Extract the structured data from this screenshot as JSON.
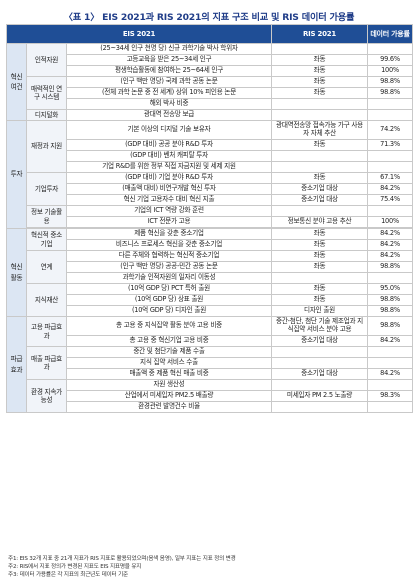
{
  "title": "〈표 1〉 EIS 2021과 RIS 2021의 지표 구조 비교 및 RIS 데이터 가용률",
  "header": {
    "eis": "EIS 2021",
    "ris": "RIS 2021",
    "availability": "데이터 가용률"
  },
  "groups": {
    "g1": "혁신여건",
    "g2": "투자",
    "g3": "혁신활동",
    "g4": "파급효과"
  },
  "subgroups": {
    "s1": "인적자원",
    "s2": "매력적인 연구 시스템",
    "s3": "디지털화",
    "s4": "재정과 지원",
    "s5": "기업투자",
    "s6": "정보 기술활용",
    "s7": "혁신적 중소기업",
    "s8": "연계",
    "s9": "지식재산",
    "s10": "고용 파급효과",
    "s11": "매출 파급효과",
    "s12": "환경 지속가능성"
  },
  "rows": [
    {
      "eis": "(25~34세 인구 천명 당) 신규 과학기술 박사 학위자",
      "ris": "",
      "val": ""
    },
    {
      "eis": "고등교육을 받은 25~34세 인구",
      "ris": "좌동",
      "val": "99.6%"
    },
    {
      "eis": "평생학습활동에 참여하는 25~64세 인구",
      "ris": "좌동",
      "val": "100%"
    },
    {
      "eis": "(인구 백만 명당) 국제 과학 공동 논문",
      "ris": "좌동",
      "val": "98.8%"
    },
    {
      "eis": "(전체 과학 논문 중 전 세계) 상위 10% 피인용 논문",
      "ris": "좌동",
      "val": "98.8%"
    },
    {
      "eis": "해외 박사 비중",
      "ris": "",
      "val": ""
    },
    {
      "eis": "광대역 전송망 보급",
      "ris": "",
      "val": ""
    },
    {
      "eis": "기본 이상의 디지털 기술 보유자",
      "ris": "광대역전송망 접속가능 가구 사용자 자체 추산",
      "val": "74.2%"
    },
    {
      "eis": "(GDP 대비) 공공 분야 R&D 투자",
      "ris": "좌동",
      "val": "71.3%"
    },
    {
      "eis": "(GDP 대비) 벤처 캐피탈 투자",
      "ris": "",
      "val": ""
    },
    {
      "eis": "기업 R&D를 위한 정부 직접 자금지원 및 세제 지원",
      "ris": "",
      "val": ""
    },
    {
      "eis": "(GDP 대비) 기업 분야 R&D 투자",
      "ris": "좌동",
      "val": "67.1%"
    },
    {
      "eis": "(매출액 대비) 비연구개발 혁신 투자",
      "ris": "중소기업 대상",
      "val": "84.2%"
    },
    {
      "eis": "혁신 기업 고용자수 대비 혁신 지출",
      "ris": "중소기업 대상",
      "val": "75.4%"
    },
    {
      "eis": "기업의 ICT 역량 강화 훈련",
      "ris": "",
      "val": ""
    },
    {
      "eis": "ICT 전문가 고용",
      "ris": "정보통신 분야 고용 추산",
      "val": "100%"
    },
    {
      "eis": "제품 혁신을 갖춘 중소기업",
      "ris": "좌동",
      "val": "84.2%"
    },
    {
      "eis": "비즈니스 프로세스 혁신을 갖춘 중소기업",
      "ris": "좌동",
      "val": "84.2%"
    },
    {
      "eis": "다른 주체와 협력하는 혁신적 중소기업",
      "ris": "좌동",
      "val": "84.2%"
    },
    {
      "eis": "(인구 백만 명당) 공공-민간 공동 논문",
      "ris": "좌동",
      "val": "98.8%"
    },
    {
      "eis": "과학기술 인적자원의 일자리 이동성",
      "ris": "",
      "val": ""
    },
    {
      "eis": "(10억 GDP 당) PCT 특허 출원",
      "ris": "좌동",
      "val": "95.0%"
    },
    {
      "eis": "(10억 GDP 당) 상표 출원",
      "ris": "좌동",
      "val": "98.8%"
    },
    {
      "eis": "(10억 GDP 당) 디자인 출원",
      "ris": "디자인 출원",
      "val": "98.8%"
    },
    {
      "eis": "총 고용 중 지식집약 활동 분야 고용 비중",
      "ris": "중간-첨단, 첨단 기술 제조업과 지식집약 서비스 분야 고용",
      "val": "98.8%"
    },
    {
      "eis": "총 고용 중 혁신기업 고용 비중",
      "ris": "중소기업 대상",
      "val": "84.2%"
    },
    {
      "eis": "중간 및 첨단기술 제품 수출",
      "ris": "",
      "val": ""
    },
    {
      "eis": "지식 집약 서비스 수출",
      "ris": "",
      "val": ""
    },
    {
      "eis": "매출액 중 제품 혁신 매출 비중",
      "ris": "중소기업 대상",
      "val": "84.2%"
    },
    {
      "eis": "자원 생산성",
      "ris": "",
      "val": ""
    },
    {
      "eis": "산업에서 미세입자 PM2.5 배출량",
      "ris": "미세입자 PM 2.5 노출량",
      "val": "98.3%"
    },
    {
      "eis": "환경관련 발명건수 비율",
      "ris": "",
      "val": ""
    }
  ],
  "notes": [
    "주1: EIS 32개 지표 중 21개 지표가 RIS 지표로 활용되었으며(음색 음영), 일부 지표는 지표 정의 변경",
    "주2: RIS에서 지표 정의가 변경된 지표도 EIS 지표명을 유지",
    "주3: 데이터 가용률은 각 지표의 최근년도 데이터 기준"
  ],
  "colors": {
    "header_bg": "#1f4e96",
    "title": "#1f3c88",
    "group_bg": "#dce6f3",
    "subgroup_bg": "#f1f4f9"
  }
}
